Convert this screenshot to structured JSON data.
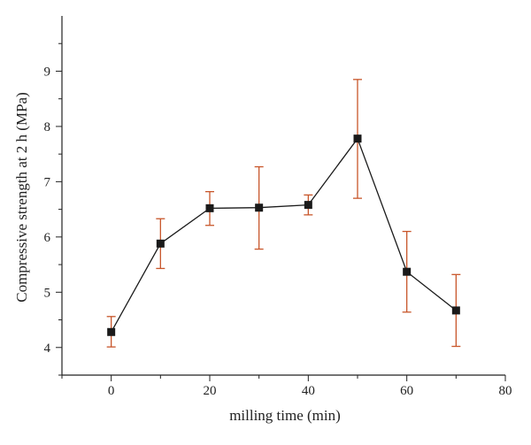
{
  "chart_data": {
    "type": "scatter",
    "title": "",
    "xlabel": "milling time (min)",
    "ylabel": "Compressive strength at 2 h (MPa)",
    "xlim": [
      -10,
      80
    ],
    "ylim": [
      3.5,
      10.0
    ],
    "xticks": [
      0,
      20,
      40,
      60,
      80
    ],
    "yticks": [
      4,
      5,
      6,
      7,
      8,
      9
    ],
    "x_minor_ticks": [
      -10,
      10,
      30,
      50,
      70
    ],
    "y_minor_ticks": [
      3.5,
      4.5,
      5.5,
      6.5,
      7.5,
      8.5,
      9.5
    ],
    "grid": false,
    "legend": "none",
    "connected": true,
    "series": [
      {
        "x": [
          0,
          10,
          20,
          30,
          40,
          50,
          60,
          70
        ],
        "y": [
          4.28,
          5.88,
          6.52,
          6.53,
          6.58,
          7.78,
          5.37,
          4.67
        ],
        "error_low": [
          4.01,
          5.43,
          6.21,
          5.78,
          6.4,
          6.7,
          4.64,
          4.02
        ],
        "error_high": [
          4.56,
          6.33,
          6.82,
          7.27,
          6.76,
          8.85,
          6.1,
          5.32
        ],
        "marker": "square",
        "marker_color": "#1a1a1a",
        "line_color": "#1a1a1a",
        "error_color": "#c8562a"
      }
    ]
  }
}
